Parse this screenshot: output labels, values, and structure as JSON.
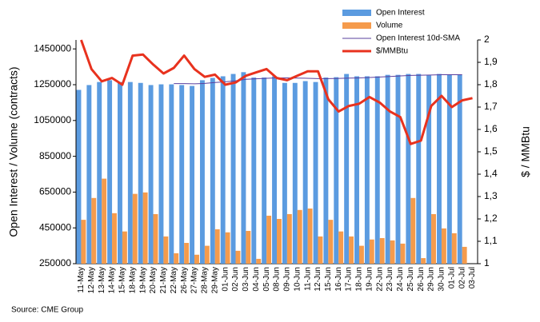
{
  "chart_data": {
    "type": "bar",
    "y_label": "Open Interest / Volume (contracts)",
    "y2_label": "$ / MMBtu",
    "source": "Source: CME Group",
    "categories": [
      "11-May",
      "12-May",
      "13-May",
      "14-May",
      "15-May",
      "18-May",
      "19-May",
      "20-May",
      "21-May",
      "22-May",
      "26-May",
      "27-May",
      "28-May",
      "29-May",
      "01-Jun",
      "02-Jun",
      "03-Jun",
      "04-Jun",
      "05-Jun",
      "08-Jun",
      "09-Jun",
      "10-Jun",
      "11-Jun",
      "12-Jun",
      "15-Jun",
      "16-Jun",
      "17-Jun",
      "18-Jun",
      "19-Jun",
      "22-Jun",
      "23-Jun",
      "24-Jun",
      "25-Jun",
      "26-Jun",
      "29-Jun",
      "30-Jun",
      "01-Jul",
      "02-Jul",
      "03-Jul"
    ],
    "series": [
      {
        "name": "Open Interest",
        "type": "bar",
        "color": "#5b9be0",
        "values": [
          1221000,
          1248000,
          1265000,
          1275000,
          1265000,
          1265000,
          1260000,
          1248000,
          1252000,
          1252000,
          1248000,
          1243000,
          1275000,
          1288000,
          1297000,
          1310000,
          1320000,
          1290000,
          1290000,
          1297000,
          1260000,
          1260000,
          1270000,
          1265000,
          1290000,
          1292000,
          1310000,
          1297000,
          1297000,
          1297000,
          1305000,
          1305000,
          1310000,
          1310000,
          1302000,
          1310000,
          1305000,
          1305000,
          null
        ]
      },
      {
        "name": "Volume",
        "type": "bar",
        "color": "#f59b4c",
        "values": [
          495000,
          617000,
          725000,
          532000,
          430000,
          640000,
          648000,
          527000,
          402000,
          308000,
          366000,
          300000,
          350000,
          442000,
          425000,
          322000,
          433000,
          277000,
          518000,
          500000,
          527000,
          550000,
          558000,
          402000,
          495000,
          430000,
          402000,
          350000,
          385000,
          393000,
          380000,
          362000,
          617000,
          281000,
          527000,
          447000,
          420000,
          344000,
          null
        ]
      },
      {
        "name": "Open Interest 10d-SMA",
        "type": "line",
        "color": "#5a3f9e",
        "values": [
          null,
          null,
          null,
          null,
          null,
          null,
          null,
          null,
          null,
          1256000,
          1256000,
          1255000,
          1257000,
          1262000,
          1266000,
          1272000,
          1280000,
          1283000,
          1286000,
          1288000,
          1288000,
          1287000,
          1286000,
          1284000,
          1284000,
          1285000,
          1287000,
          1288000,
          1290000,
          1293000,
          1296000,
          1299000,
          1302000,
          1303000,
          1304000,
          1306000,
          1306000,
          1306000,
          null
        ]
      },
      {
        "name": "$/MMBtu",
        "type": "line",
        "axis": "y2",
        "color": "#e8321e",
        "values": [
          2.0,
          1.87,
          1.815,
          1.83,
          1.8,
          1.93,
          1.935,
          1.89,
          1.85,
          1.875,
          1.93,
          1.87,
          1.835,
          1.845,
          1.8,
          1.81,
          1.84,
          1.855,
          1.87,
          1.83,
          1.82,
          1.84,
          1.86,
          1.86,
          1.735,
          1.68,
          1.705,
          1.715,
          1.745,
          1.72,
          1.68,
          1.655,
          1.535,
          1.55,
          1.705,
          1.75,
          1.7,
          1.73,
          1.74
        ]
      }
    ],
    "ylim": [
      250000,
      1500000
    ],
    "yticks": [
      250000,
      450000,
      650000,
      850000,
      1050000,
      1250000,
      1450000
    ],
    "y2lim": [
      1,
      2
    ],
    "y2ticks": [
      1,
      {
        "value": 1.1,
        "label": "1,1"
      },
      {
        "value": 1.2,
        "label": "1,2"
      },
      {
        "value": 1.3,
        "label": "1,3"
      },
      {
        "value": 1.4,
        "label": "1,4"
      },
      {
        "value": 1.5,
        "label": "1,5"
      },
      {
        "value": 1.6,
        "label": "1,6"
      },
      {
        "value": 1.7,
        "label": "1,7"
      },
      {
        "value": 1.8,
        "label": "1,8"
      },
      {
        "value": 1.9,
        "label": "1,9"
      },
      2
    ],
    "grid": false
  }
}
